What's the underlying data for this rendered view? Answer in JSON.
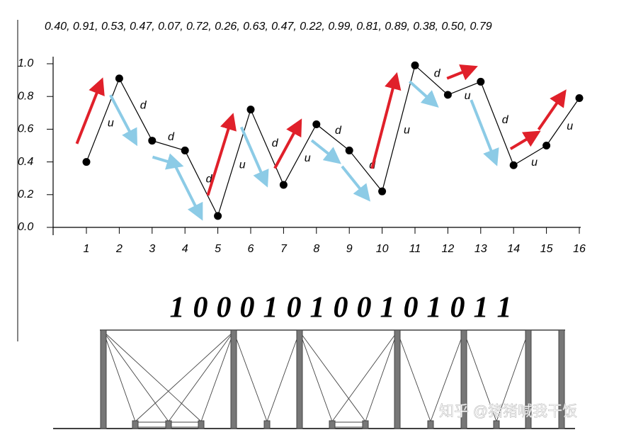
{
  "chart_data": {
    "type": "line",
    "title": "0.40, 0.91, 0.53, 0.47, 0.07, 0.72, 0.26, 0.63, 0.47, 0.22, 0.99, 0.81, 0.89, 0.38, 0.50, 0.79",
    "x": [
      1,
      2,
      3,
      4,
      5,
      6,
      7,
      8,
      9,
      10,
      11,
      12,
      13,
      14,
      15,
      16
    ],
    "values": [
      0.4,
      0.91,
      0.53,
      0.47,
      0.07,
      0.72,
      0.26,
      0.63,
      0.47,
      0.22,
      0.99,
      0.81,
      0.89,
      0.38,
      0.5,
      0.79
    ],
    "color": "#000000",
    "xlim": [
      0,
      16
    ],
    "xticks": [
      1,
      2,
      3,
      4,
      5,
      6,
      7,
      8,
      9,
      10,
      11,
      12,
      13,
      14,
      15,
      16
    ],
    "ylim": [
      0,
      1
    ],
    "yticks": [
      {
        "value": 0,
        "label": "0.0"
      },
      0.2,
      0.4,
      0.6,
      0.8,
      {
        "value": 1,
        "label": "1.0"
      }
    ],
    "trend_labels": [
      "u",
      "d",
      "d",
      "d",
      "u",
      "d",
      "u",
      "d",
      "d",
      "u",
      "d",
      "u",
      "d",
      "u",
      "u"
    ],
    "up_color": "#e0202a",
    "down_color": "#8ccbe6",
    "binary_digits": [
      "1",
      "0",
      "0",
      "0",
      "1",
      "0",
      "1",
      "0",
      "0",
      "1",
      "0",
      "1",
      "0",
      "1",
      "1"
    ],
    "watermark": "知乎 @猪猪喊我干饭"
  }
}
